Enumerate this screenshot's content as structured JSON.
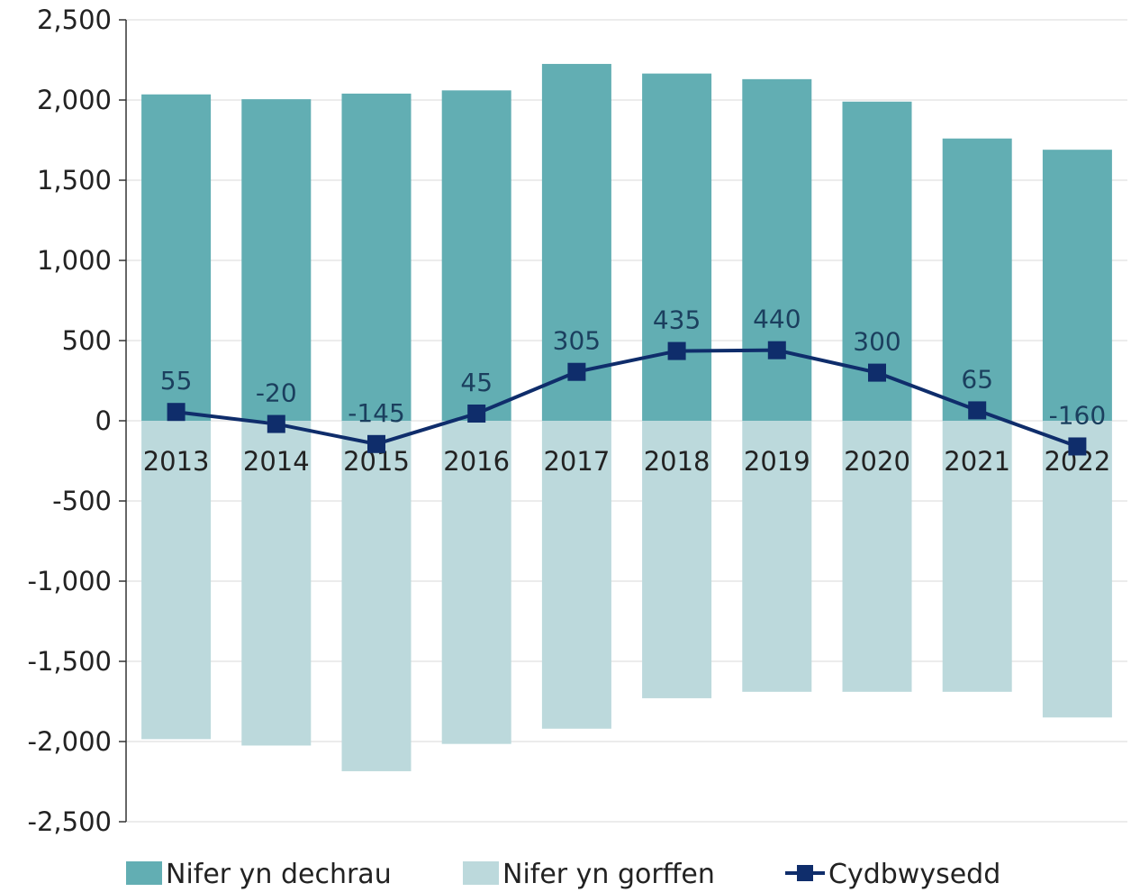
{
  "chart_data": {
    "type": "bar",
    "categories": [
      "2013",
      "2014",
      "2015",
      "2016",
      "2017",
      "2018",
      "2019",
      "2020",
      "2021",
      "2022"
    ],
    "series": [
      {
        "name": "Nifer yn dechrau",
        "type": "bar",
        "color": "#62aeb3",
        "values": [
          2035,
          2005,
          2040,
          2060,
          2225,
          2165,
          2130,
          1990,
          1760,
          1690
        ]
      },
      {
        "name": "Nifer yn gorffen",
        "type": "bar",
        "color": "#bcd9dc",
        "values": [
          -1985,
          -2025,
          -2185,
          -2015,
          -1920,
          -1730,
          -1690,
          -1690,
          -1690,
          -1850
        ]
      },
      {
        "name": "Cydbwysedd",
        "type": "line",
        "color": "#0f2d6b",
        "values": [
          55,
          -20,
          -145,
          45,
          305,
          435,
          440,
          300,
          65,
          -160
        ],
        "labels": [
          "55",
          "-20",
          "-145",
          "45",
          "305",
          "435",
          "440",
          "300",
          "65",
          "-160"
        ]
      }
    ],
    "yticks": [
      "2,500",
      "2,000",
      "1,500",
      "1,000",
      "500",
      "0",
      "-500",
      "-1,000",
      "-1,500",
      "-2,000",
      "-2,500"
    ],
    "ylim": [
      -2500,
      2500
    ],
    "grid": true,
    "legend_position": "bottom",
    "title": "",
    "xlabel": "",
    "ylabel": ""
  }
}
